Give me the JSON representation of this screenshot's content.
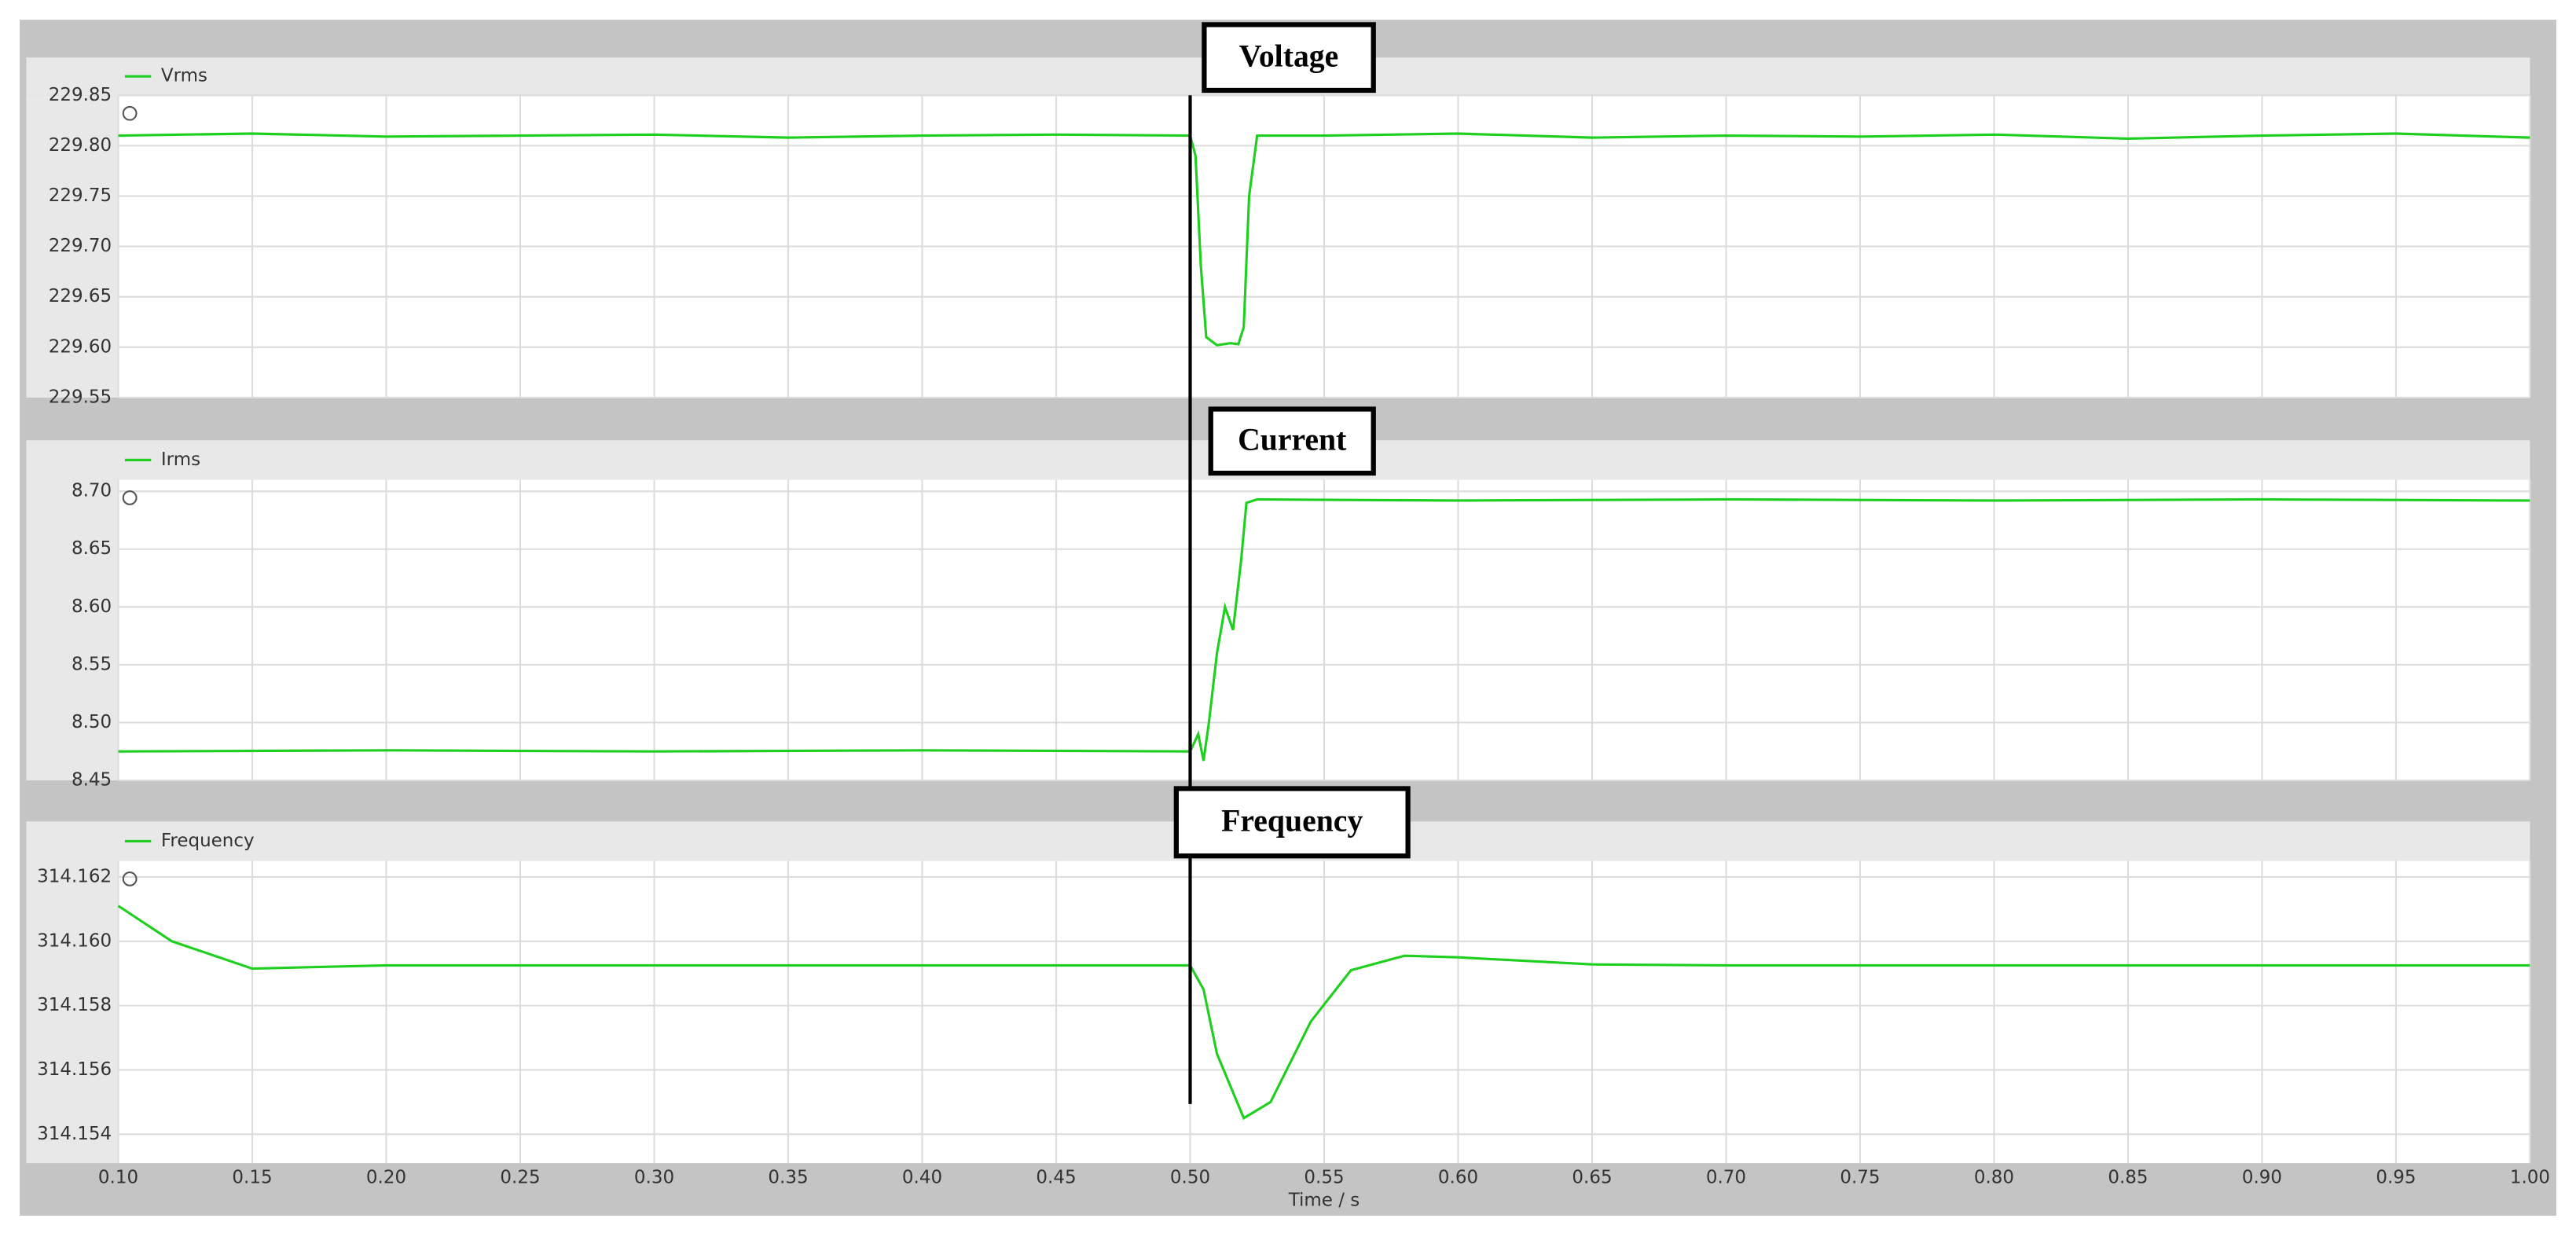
{
  "marker_x": 0.5,
  "chart_data": [
    {
      "type": "line",
      "annotation": "Voltage",
      "xlim": [
        0.1,
        1.0
      ],
      "ylim": [
        229.55,
        229.85
      ],
      "yticks": [
        229.55,
        {
          "value": 229.6,
          "label": "229.60"
        },
        229.65,
        {
          "value": 229.7,
          "label": "229.70"
        },
        229.75,
        {
          "value": 229.8,
          "label": "229.80"
        },
        229.85
      ],
      "grid": true,
      "x": [
        0.1,
        0.15,
        0.2,
        0.25,
        0.3,
        0.35,
        0.4,
        0.45,
        0.5,
        0.502,
        0.504,
        0.506,
        0.51,
        0.515,
        0.518,
        0.52,
        0.522,
        0.525,
        0.55,
        0.6,
        0.65,
        0.7,
        0.75,
        0.8,
        0.85,
        0.9,
        0.95,
        1.0
      ],
      "series": [
        {
          "name": "Vrms",
          "color": "#1fcf1f",
          "values": [
            229.81,
            229.812,
            229.809,
            229.81,
            229.811,
            229.808,
            229.81,
            229.811,
            229.81,
            229.79,
            229.68,
            229.61,
            229.602,
            229.604,
            229.603,
            229.62,
            229.75,
            229.81,
            229.81,
            229.812,
            229.808,
            229.81,
            229.809,
            229.811,
            229.807,
            229.81,
            229.812,
            229.808
          ]
        }
      ]
    },
    {
      "type": "line",
      "annotation": "Current",
      "xlim": [
        0.1,
        1.0
      ],
      "ylim": [
        8.45,
        8.71
      ],
      "yticks": [
        8.45,
        {
          "value": 8.5,
          "label": "8.50"
        },
        8.55,
        {
          "value": 8.6,
          "label": "8.60"
        },
        8.65,
        {
          "value": 8.7,
          "label": "8.70"
        }
      ],
      "grid": true,
      "x": [
        0.1,
        0.2,
        0.3,
        0.4,
        0.5,
        0.503,
        0.505,
        0.507,
        0.51,
        0.513,
        0.516,
        0.519,
        0.521,
        0.525,
        0.6,
        0.7,
        0.8,
        0.9,
        1.0
      ],
      "series": [
        {
          "name": "Irms",
          "color": "#1fcf1f",
          "values": [
            8.475,
            8.476,
            8.475,
            8.476,
            8.475,
            8.49,
            8.467,
            8.5,
            8.56,
            8.6,
            8.58,
            8.64,
            8.69,
            8.693,
            8.692,
            8.693,
            8.692,
            8.693,
            8.692
          ]
        }
      ]
    },
    {
      "type": "line",
      "annotation": "Frequency",
      "xlim": [
        0.1,
        1.0
      ],
      "ylim": [
        314.1531,
        314.1625
      ],
      "yticks": [
        314.154,
        314.156,
        314.158,
        {
          "value": 314.16,
          "label": "314.160"
        },
        314.162
      ],
      "xticks": [
        {
          "value": 0.1,
          "label": "0.10"
        },
        0.15,
        {
          "value": 0.2,
          "label": "0.20"
        },
        0.25,
        {
          "value": 0.3,
          "label": "0.30"
        },
        0.35,
        {
          "value": 0.4,
          "label": "0.40"
        },
        0.45,
        {
          "value": 0.5,
          "label": "0.50"
        },
        0.55,
        {
          "value": 0.6,
          "label": "0.60"
        },
        0.65,
        {
          "value": 0.7,
          "label": "0.70"
        },
        0.75,
        {
          "value": 0.8,
          "label": "0.80"
        },
        0.85,
        {
          "value": 0.9,
          "label": "0.90"
        },
        0.95,
        {
          "value": 1,
          "label": "1.00"
        }
      ],
      "xlabel": "Time / s",
      "grid": true,
      "x": [
        0.1,
        0.12,
        0.15,
        0.2,
        0.3,
        0.5,
        0.505,
        0.51,
        0.52,
        0.53,
        0.545,
        0.56,
        0.58,
        0.6,
        0.65,
        0.7,
        1.0
      ],
      "series": [
        {
          "name": "Frequency",
          "color": "#1fcf1f",
          "values": [
            314.1611,
            314.16,
            314.15915,
            314.15925,
            314.15925,
            314.15925,
            314.1585,
            314.1565,
            314.1545,
            314.155,
            314.1575,
            314.1591,
            314.15955,
            314.1595,
            314.15928,
            314.15925,
            314.15925
          ]
        }
      ]
    }
  ]
}
